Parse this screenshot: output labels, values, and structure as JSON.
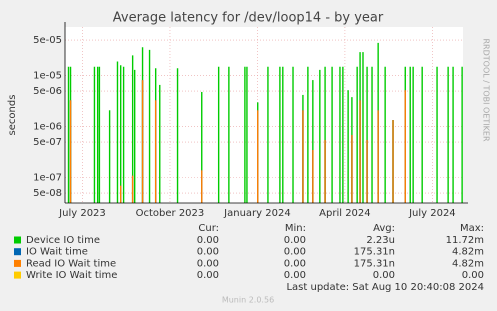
{
  "chart_data": {
    "type": "bar",
    "title": "Average latency for /dev/loop14 - by year",
    "ylabel": "seconds",
    "side_label": "RRDTOOL / TOBI OETIKER",
    "log_scale": true,
    "grid": true,
    "x": [
      -0.48,
      -0.41,
      0.41,
      0.52,
      0.58,
      0.93,
      1.2,
      1.31,
      1.41,
      1.72,
      1.79,
      2.06,
      2.3,
      2.51,
      2.65,
      3.26,
      4.09,
      4.67,
      5.02,
      5.57,
      5.64,
      6.01,
      6.36,
      6.77,
      6.87,
      7.22,
      7.56,
      7.73,
      7.9,
      8.14,
      8.32,
      8.56,
      8.83,
      8.93,
      9.11,
      9.24,
      9.42,
      9.52,
      9.62,
      9.76,
      9.93,
      10.14,
      10.38,
      10.65,
      11.07,
      11.24,
      11.34,
      11.65,
      12.16,
      12.54,
      12.71,
      13.02
    ],
    "xlim": [
      -0.6,
      13.05
    ],
    "xticks": [
      {
        "value": 0,
        "label": "July 2023"
      },
      {
        "value": 3,
        "label": "October 2023"
      },
      {
        "value": 6,
        "label": "January 2024"
      },
      {
        "value": 9,
        "label": "April 2024"
      },
      {
        "value": 12,
        "label": "July 2024"
      }
    ],
    "ylim": [
      3.2e-08,
      9e-05
    ],
    "yticks": [
      {
        "value": 5e-08,
        "label": "5e-08"
      },
      {
        "value": 1e-07,
        "label": "1e-07"
      },
      {
        "value": 5e-07,
        "label": "5e-07"
      },
      {
        "value": 1e-06,
        "label": "1e-06"
      },
      {
        "value": 5e-06,
        "label": "5e-06"
      },
      {
        "value": 1e-05,
        "label": "1e-05"
      },
      {
        "value": 5e-05,
        "label": "5e-05"
      }
    ],
    "series": [
      {
        "name": "Device IO time",
        "color": "#00cc00",
        "values": [
          1.5e-05,
          1.5e-05,
          1.5e-05,
          1.5e-05,
          1.5e-05,
          2.1e-06,
          1.9e-05,
          1.6e-05,
          1.5e-05,
          2.5e-05,
          1.3e-05,
          3.6e-05,
          3.2e-05,
          1.4e-05,
          6.6e-06,
          1.4e-05,
          4.8e-06,
          1.5e-05,
          1.5e-05,
          1.5e-05,
          1.5e-05,
          3e-06,
          1.5e-05,
          1.5e-05,
          1.5e-05,
          1.5e-05,
          4.2e-06,
          1.5e-05,
          8.2e-06,
          1.3e-05,
          1.5e-05,
          1.5e-05,
          1.5e-05,
          1.5e-05,
          5.2e-06,
          3.8e-06,
          1.5e-05,
          2.9e-05,
          2.9e-05,
          1.5e-05,
          1.5e-05,
          4.4e-05,
          1.5e-05,
          1.35e-06,
          1.5e-05,
          1.5e-05,
          1.5e-05,
          1.5e-05,
          1.5e-05,
          1.5e-05,
          1.5e-05,
          1.5e-05
        ]
      },
      {
        "name": "IO Wait time",
        "color": "#0066b3",
        "values": [
          null,
          3.3e-06,
          null,
          null,
          null,
          null,
          null,
          7e-08,
          null,
          1.1e-07,
          null,
          8.2e-06,
          null,
          3.3e-06,
          null,
          null,
          1.4e-07,
          null,
          null,
          null,
          null,
          2.1e-06,
          null,
          null,
          null,
          null,
          2.1e-06,
          null,
          3.5e-07,
          null,
          5.5e-07,
          null,
          null,
          null,
          null,
          6.9e-07,
          null,
          3.3e-06,
          null,
          5.5e-07,
          null,
          2.1e-06,
          null,
          1.35e-06,
          5.2e-06,
          null,
          null,
          null,
          null,
          null,
          null,
          null
        ]
      },
      {
        "name": "Read IO Wait time",
        "color": "#ff8000",
        "values": [
          null,
          3.3e-06,
          null,
          null,
          null,
          null,
          null,
          7e-08,
          null,
          1.1e-07,
          null,
          8.2e-06,
          null,
          3.3e-06,
          null,
          null,
          1.4e-07,
          null,
          null,
          null,
          null,
          2.1e-06,
          null,
          null,
          null,
          null,
          2.1e-06,
          null,
          3.5e-07,
          null,
          5.5e-07,
          null,
          null,
          null,
          null,
          6.9e-07,
          null,
          3.3e-06,
          null,
          5.5e-07,
          null,
          2.1e-06,
          null,
          1.35e-06,
          5.2e-06,
          null,
          null,
          null,
          null,
          null,
          null,
          null
        ]
      },
      {
        "name": "Write IO Wait time",
        "color": "#ffcc00",
        "values": [
          null,
          null,
          null,
          null,
          null,
          null,
          null,
          null,
          null,
          null,
          null,
          null,
          null,
          null,
          null,
          null,
          null,
          null,
          null,
          null,
          null,
          null,
          null,
          null,
          null,
          null,
          null,
          null,
          null,
          null,
          null,
          null,
          null,
          null,
          null,
          null,
          null,
          null,
          null,
          null,
          null,
          null,
          null,
          null,
          null,
          null,
          null,
          null,
          null,
          null,
          null,
          null
        ]
      }
    ],
    "stats": {
      "headers": [
        "Cur:",
        "Min:",
        "Avg:",
        "Max:"
      ],
      "rows": [
        [
          "0.00",
          "0.00",
          "2.23u",
          "11.72m"
        ],
        [
          "0.00",
          "0.00",
          "175.31n",
          "4.82m"
        ],
        [
          "0.00",
          "0.00",
          "175.31n",
          "4.82m"
        ],
        [
          "0.00",
          "0.00",
          "0.00",
          "0.00"
        ]
      ]
    },
    "last_update": "Last update: Sat Aug 10 20:40:08 2024",
    "footer": "Munin 2.0.56"
  }
}
